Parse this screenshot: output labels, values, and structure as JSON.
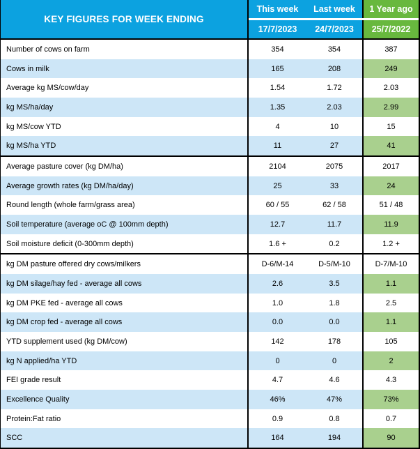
{
  "colors": {
    "header_blue": "#0CA2E0",
    "header_green": "#68B83E",
    "row_shaded_blue": "#CDE6F7",
    "year_ago_cell_green": "#A9D08E",
    "header_text": "#FFFFFF",
    "body_text": "#000000",
    "border": "#000000"
  },
  "chart_data": {
    "type": "table",
    "title": "KEY FIGURES FOR WEEK ENDING",
    "columns": [
      {
        "label": "This week",
        "date": "17/7/2023"
      },
      {
        "label": "Last week",
        "date": "24/7/2023"
      },
      {
        "label": "1 Year ago",
        "date": "25/7/2022"
      }
    ],
    "sections": [
      {
        "rows": [
          {
            "label": "Number of cows on farm",
            "values": [
              "354",
              "354",
              "387"
            ]
          },
          {
            "label": "Cows in milk",
            "values": [
              "165",
              "208",
              "249"
            ]
          },
          {
            "label": "Average kg MS/cow/day",
            "values": [
              "1.54",
              "1.72",
              "2.03"
            ]
          },
          {
            "label": "kg MS/ha/day",
            "values": [
              "1.35",
              "2.03",
              "2.99"
            ]
          },
          {
            "label": "kg MS/cow YTD",
            "values": [
              "4",
              "10",
              "15"
            ]
          },
          {
            "label": "kg MS/ha YTD",
            "values": [
              "11",
              "27",
              "41"
            ]
          }
        ]
      },
      {
        "rows": [
          {
            "label": "Average pasture cover (kg DM/ha)",
            "values": [
              "2104",
              "2075",
              "2017"
            ]
          },
          {
            "label": "Average growth rates (kg DM/ha/day)",
            "values": [
              "25",
              "33",
              "24"
            ]
          },
          {
            "label": "Round length (whole farm/grass area)",
            "values": [
              "60 / 55",
              "62 / 58",
              "51 / 48"
            ]
          },
          {
            "label": "Soil temperature (average oC  @ 100mm depth)",
            "values": [
              "12.7",
              "11.7",
              "11.9"
            ]
          },
          {
            "label": "Soil moisture deficit (0-300mm depth)",
            "values": [
              "1.6 +",
              "0.2",
              "1.2 +"
            ]
          }
        ]
      },
      {
        "rows": [
          {
            "label": "kg DM pasture offered dry cows/milkers",
            "values": [
              "D-6/M-14",
              "D-5/M-10",
              "D-7/M-10"
            ]
          },
          {
            "label": "kg DM silage/hay fed - average all cows",
            "values": [
              "2.6",
              "3.5",
              "1.1"
            ]
          },
          {
            "label": "kg DM PKE fed - average all cows",
            "values": [
              "1.0",
              "1.8",
              "2.5"
            ]
          },
          {
            "label": "kg DM crop fed - average all cows",
            "values": [
              "0.0",
              "0.0",
              "1.1"
            ]
          },
          {
            "label": "YTD supplement used (kg DM/cow)",
            "values": [
              "142",
              "178",
              "105"
            ]
          },
          {
            "label": "kg N applied/ha YTD",
            "values": [
              "0",
              "0",
              "2"
            ]
          },
          {
            "label": "FEI grade result",
            "values": [
              "4.7",
              "4.6",
              "4.3"
            ]
          },
          {
            "label": "Excellence Quality",
            "values": [
              "46%",
              "47%",
              "73%"
            ]
          },
          {
            "label": "Protein:Fat ratio",
            "values": [
              "0.9",
              "0.8",
              "0.7"
            ]
          },
          {
            "label": "SCC",
            "values": [
              "164",
              "194",
              "90"
            ]
          }
        ]
      }
    ]
  }
}
